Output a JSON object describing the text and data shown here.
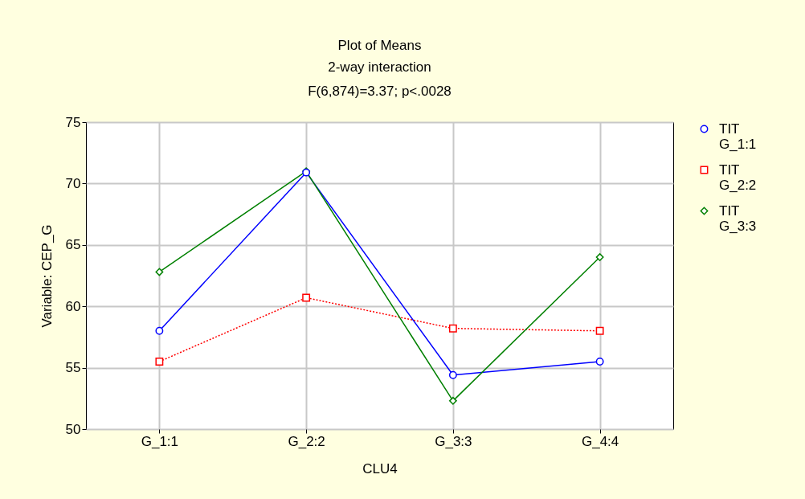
{
  "chart_data": {
    "type": "line",
    "title": "Plot of Means",
    "subtitle": "2-way interaction",
    "annotations": [
      "F(6,874)=3.37; p<.0028"
    ],
    "xlabel": "CLU4",
    "ylabel": "Variable: CEP_G",
    "categories": [
      "G_1:1",
      "G_2:2",
      "G_3:3",
      "G_4:4"
    ],
    "series": [
      {
        "name": "TIT G_1:1",
        "color": "#0000ff",
        "marker": "circle",
        "line_style": "solid",
        "values": [
          58.0,
          70.9,
          54.4,
          55.5
        ]
      },
      {
        "name": "TIT G_2:2",
        "color": "#ff0000",
        "marker": "square",
        "line_style": "dotted",
        "values": [
          55.5,
          60.7,
          58.2,
          58.0
        ]
      },
      {
        "name": "TIT G_3:3",
        "color": "#008000",
        "marker": "diamond",
        "line_style": "solid",
        "values": [
          62.8,
          71.0,
          52.3,
          64.0
        ]
      }
    ],
    "ylim": [
      50,
      75
    ],
    "yticks": [
      50,
      55,
      60,
      65,
      70,
      75
    ],
    "grid": true,
    "legend": "right"
  }
}
